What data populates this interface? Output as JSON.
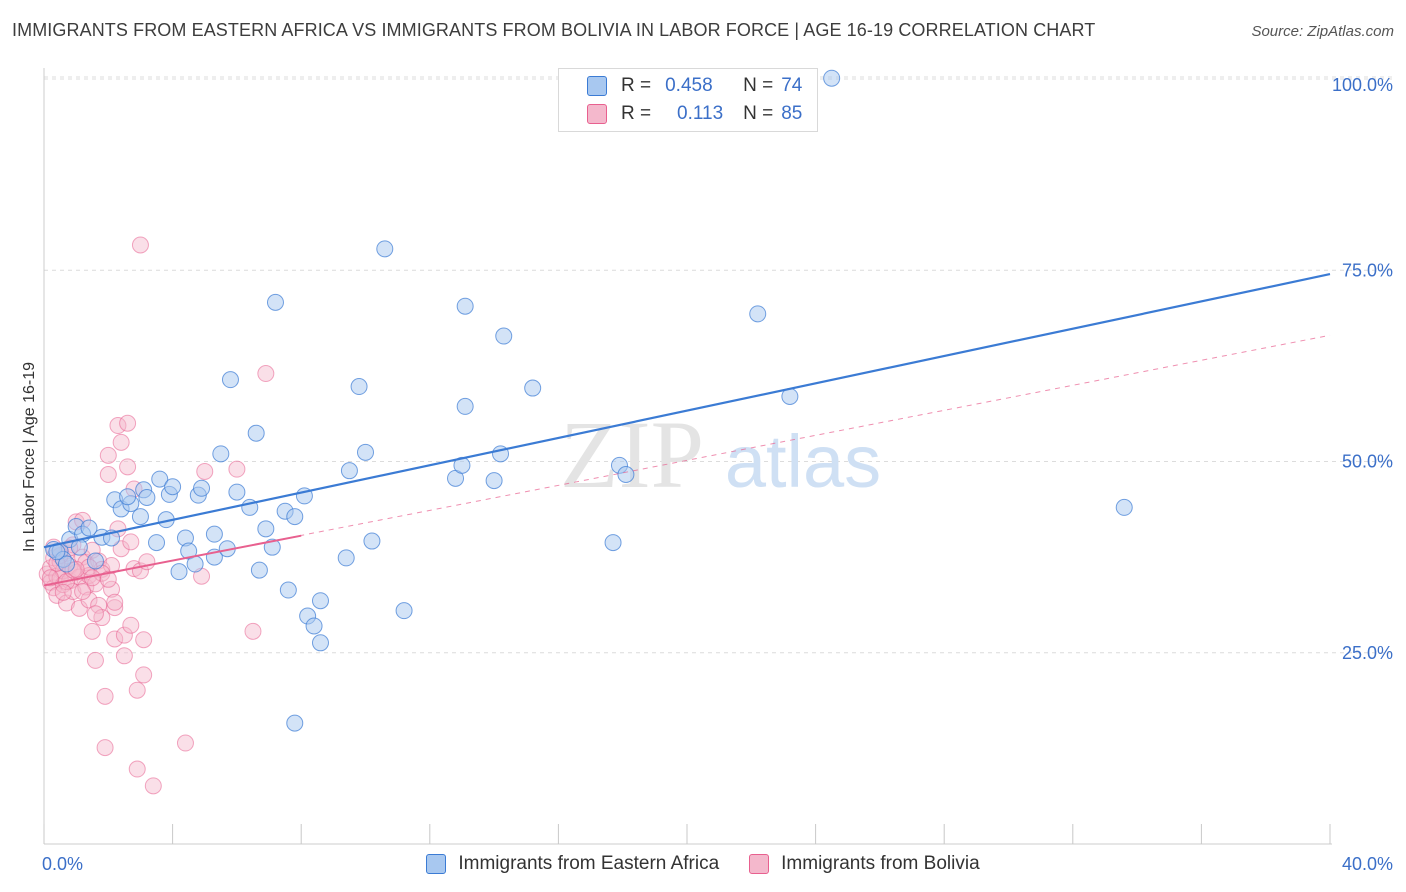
{
  "header": {
    "title": "IMMIGRANTS FROM EASTERN AFRICA VS IMMIGRANTS FROM BOLIVIA IN LABOR FORCE | AGE 16-19 CORRELATION CHART",
    "source": "Source: ZipAtlas.com"
  },
  "watermark": {
    "zip": "ZIP",
    "atlas": "atlas"
  },
  "colors": {
    "blue": "#3b7bd4",
    "blue_fill": "#a8c8f0",
    "pink": "#e8608f",
    "pink_fill": "#f4b8cc",
    "tick_label": "#3b6fc8",
    "grid": "#dcdcdc"
  },
  "legend": {
    "rows": [
      {
        "r_label": "R =",
        "r_value": "0.458",
        "n_label": "N =",
        "n_value": "74"
      },
      {
        "r_label": "R =",
        "r_value": "0.113",
        "n_label": "N =",
        "n_value": "85"
      }
    ]
  },
  "bottom_legend": {
    "items": [
      "Immigrants from Eastern Africa",
      "Immigrants from Bolivia"
    ]
  },
  "chart_data": {
    "type": "scatter",
    "title": "IMMIGRANTS FROM EASTERN AFRICA VS IMMIGRANTS FROM BOLIVIA IN LABOR FORCE | AGE 16-19 CORRELATION CHART",
    "xlabel": "",
    "ylabel": "In Labor Force | Age 16-19",
    "xlim": [
      0,
      40
    ],
    "ylim": [
      0,
      100
    ],
    "x_tick_labels": [
      "0.0%",
      "40.0%"
    ],
    "y_ticks": [
      25,
      50,
      75,
      100
    ],
    "y_tick_labels": [
      "25.0%",
      "50.0%",
      "75.0%",
      "100.0%"
    ],
    "grid": true,
    "legend_position": "top-center",
    "series": [
      {
        "name": "Immigrants from Eastern Africa",
        "R": 0.458,
        "N": 74,
        "trend": {
          "x": [
            0,
            40
          ],
          "y": [
            38.8,
            74.5
          ]
        },
        "points": [
          [
            0.3,
            38.5
          ],
          [
            0.5,
            38.3
          ],
          [
            0.6,
            37.2
          ],
          [
            0.8,
            39.8
          ],
          [
            1.0,
            41.5
          ],
          [
            1.2,
            40.5
          ],
          [
            1.4,
            41.3
          ],
          [
            0.7,
            36.6
          ],
          [
            1.6,
            37.0
          ],
          [
            1.8,
            40.1
          ],
          [
            2.1,
            40.0
          ],
          [
            2.2,
            45.0
          ],
          [
            2.4,
            43.8
          ],
          [
            2.7,
            44.5
          ],
          [
            2.6,
            45.4
          ],
          [
            3.0,
            42.8
          ],
          [
            3.1,
            46.3
          ],
          [
            3.2,
            45.3
          ],
          [
            3.5,
            39.4
          ],
          [
            3.6,
            47.7
          ],
          [
            3.8,
            42.4
          ],
          [
            3.9,
            45.7
          ],
          [
            4.0,
            46.7
          ],
          [
            4.2,
            35.6
          ],
          [
            4.4,
            40.0
          ],
          [
            4.5,
            38.3
          ],
          [
            4.8,
            45.6
          ],
          [
            4.9,
            46.5
          ],
          [
            4.7,
            36.6
          ],
          [
            5.3,
            37.5
          ],
          [
            5.3,
            40.5
          ],
          [
            5.5,
            51.0
          ],
          [
            5.7,
            38.6
          ],
          [
            5.8,
            60.7
          ],
          [
            6.0,
            46.0
          ],
          [
            6.4,
            44.0
          ],
          [
            6.6,
            53.7
          ],
          [
            6.7,
            35.8
          ],
          [
            6.9,
            41.2
          ],
          [
            7.1,
            38.8
          ],
          [
            7.2,
            70.8
          ],
          [
            7.5,
            43.5
          ],
          [
            7.6,
            33.2
          ],
          [
            7.8,
            42.8
          ],
          [
            8.1,
            45.5
          ],
          [
            8.2,
            29.8
          ],
          [
            8.4,
            28.5
          ],
          [
            8.6,
            31.8
          ],
          [
            8.6,
            26.3
          ],
          [
            7.8,
            15.8
          ],
          [
            9.4,
            37.4
          ],
          [
            9.5,
            48.8
          ],
          [
            9.8,
            59.8
          ],
          [
            10.0,
            51.2
          ],
          [
            10.2,
            39.6
          ],
          [
            10.6,
            77.8
          ],
          [
            11.2,
            30.5
          ],
          [
            12.8,
            47.8
          ],
          [
            13.0,
            49.5
          ],
          [
            13.1,
            57.2
          ],
          [
            13.1,
            70.3
          ],
          [
            14.0,
            47.5
          ],
          [
            14.2,
            51.0
          ],
          [
            14.3,
            66.4
          ],
          [
            15.2,
            59.6
          ],
          [
            17.7,
            39.4
          ],
          [
            17.9,
            49.5
          ],
          [
            18.1,
            48.3
          ],
          [
            22.2,
            69.3
          ],
          [
            23.2,
            58.5
          ],
          [
            24.5,
            100.1
          ],
          [
            33.6,
            44.0
          ],
          [
            0.4,
            38.2
          ],
          [
            1.1,
            38.8
          ]
        ]
      },
      {
        "name": "Immigrants from Bolivia",
        "R": 0.113,
        "N": 85,
        "trend_solid": {
          "x": [
            0,
            8
          ],
          "y": [
            33.8,
            40.3
          ]
        },
        "trend_dashed": {
          "x": [
            0,
            40
          ],
          "y": [
            33.8,
            66.5
          ]
        },
        "points": [
          [
            0.1,
            35.3
          ],
          [
            0.2,
            34.2
          ],
          [
            0.2,
            36.1
          ],
          [
            0.3,
            33.5
          ],
          [
            0.3,
            37.4
          ],
          [
            0.4,
            35.0
          ],
          [
            0.4,
            32.5
          ],
          [
            0.5,
            34.7
          ],
          [
            0.5,
            36.9
          ],
          [
            0.6,
            33.9
          ],
          [
            0.6,
            35.7
          ],
          [
            0.7,
            31.5
          ],
          [
            0.7,
            38.0
          ],
          [
            0.8,
            34.4
          ],
          [
            0.8,
            36.3
          ],
          [
            0.9,
            33.0
          ],
          [
            0.9,
            39.1
          ],
          [
            1.0,
            35.5
          ],
          [
            1.0,
            42.1
          ],
          [
            1.1,
            30.8
          ],
          [
            1.1,
            34.9
          ],
          [
            1.2,
            37.5
          ],
          [
            1.2,
            42.3
          ],
          [
            1.3,
            33.6
          ],
          [
            1.3,
            36.8
          ],
          [
            1.4,
            31.9
          ],
          [
            1.4,
            35.1
          ],
          [
            1.5,
            27.8
          ],
          [
            1.5,
            38.4
          ],
          [
            1.6,
            24.0
          ],
          [
            1.6,
            34.0
          ],
          [
            1.7,
            37.0
          ],
          [
            1.7,
            31.2
          ],
          [
            1.8,
            29.6
          ],
          [
            1.8,
            35.9
          ],
          [
            1.9,
            19.3
          ],
          [
            1.9,
            12.6
          ],
          [
            2.0,
            48.3
          ],
          [
            2.0,
            50.8
          ],
          [
            2.1,
            33.3
          ],
          [
            2.1,
            36.4
          ],
          [
            2.2,
            30.9
          ],
          [
            2.2,
            26.8
          ],
          [
            2.3,
            54.7
          ],
          [
            2.3,
            41.2
          ],
          [
            2.4,
            38.6
          ],
          [
            2.4,
            52.5
          ],
          [
            2.5,
            27.3
          ],
          [
            2.5,
            24.6
          ],
          [
            2.6,
            49.3
          ],
          [
            2.6,
            55.0
          ],
          [
            2.7,
            39.5
          ],
          [
            2.7,
            28.6
          ],
          [
            2.8,
            46.4
          ],
          [
            2.8,
            36.0
          ],
          [
            2.9,
            20.1
          ],
          [
            2.9,
            9.8
          ],
          [
            3.0,
            35.7
          ],
          [
            3.0,
            78.3
          ],
          [
            3.1,
            26.7
          ],
          [
            3.1,
            22.1
          ],
          [
            3.2,
            36.9
          ],
          [
            3.4,
            7.6
          ],
          [
            4.4,
            13.2
          ],
          [
            4.9,
            35.0
          ],
          [
            5.0,
            48.7
          ],
          [
            6.0,
            49.0
          ],
          [
            6.5,
            27.8
          ],
          [
            6.9,
            61.5
          ],
          [
            0.3,
            38.8
          ],
          [
            0.5,
            37.7
          ],
          [
            0.7,
            34.3
          ],
          [
            0.9,
            35.8
          ],
          [
            1.2,
            33.0
          ],
          [
            1.4,
            36.2
          ],
          [
            1.6,
            30.1
          ],
          [
            1.8,
            35.4
          ],
          [
            2.0,
            34.6
          ],
          [
            2.2,
            31.6
          ],
          [
            0.2,
            34.8
          ],
          [
            0.4,
            36.7
          ],
          [
            0.6,
            32.9
          ],
          [
            0.8,
            38.7
          ],
          [
            1.0,
            35.9
          ],
          [
            1.5,
            34.8
          ]
        ]
      }
    ]
  }
}
